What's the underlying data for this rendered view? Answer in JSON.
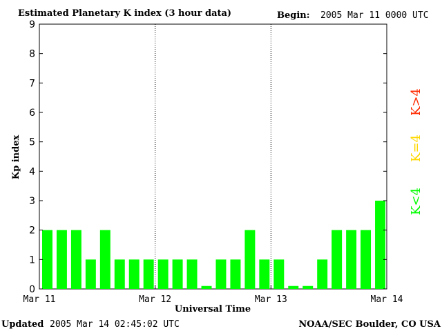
{
  "header": {
    "title": "Estimated Planetary K index (3 hour data)",
    "begin_label": "Begin:",
    "begin_value": "2005 Mar 11 0000 UTC"
  },
  "footer": {
    "updated_label": "Updated",
    "updated_value": "2005 Mar 14 02:45:02 UTC",
    "source": "NOAA/SEC Boulder, CO USA"
  },
  "legend": [
    {
      "label": "K>4",
      "color": "#ff2a00"
    },
    {
      "label": "K=4",
      "color": "#ffd800"
    },
    {
      "label": "K<4",
      "color": "#00ff00"
    }
  ],
  "chart_data": {
    "type": "bar",
    "title": "Estimated Planetary K index (3 hour data)",
    "xlabel": "Universal Time",
    "ylabel": "Kp index",
    "ylim": [
      0,
      9
    ],
    "yticks": [
      "0",
      "1",
      "2",
      "3",
      "4",
      "5",
      "6",
      "7",
      "8",
      "9"
    ],
    "xticks": [
      "Mar 11",
      "Mar 12",
      "Mar 13",
      "Mar 14"
    ],
    "day_separators": [
      "Mar 12",
      "Mar 13"
    ],
    "categories": [
      "Mar 11 00",
      "Mar 11 03",
      "Mar 11 06",
      "Mar 11 09",
      "Mar 11 12",
      "Mar 11 15",
      "Mar 11 18",
      "Mar 11 21",
      "Mar 12 00",
      "Mar 12 03",
      "Mar 12 06",
      "Mar 12 09",
      "Mar 12 12",
      "Mar 12 15",
      "Mar 12 18",
      "Mar 12 21",
      "Mar 13 00",
      "Mar 13 03",
      "Mar 13 06",
      "Mar 13 09",
      "Mar 13 12",
      "Mar 13 15",
      "Mar 13 18",
      "Mar 13 21"
    ],
    "values": [
      2,
      2,
      2,
      1,
      2,
      1,
      1,
      1,
      1,
      1,
      1,
      0.1,
      1,
      1,
      2,
      1,
      1,
      0.1,
      0.1,
      1,
      2,
      2,
      2,
      3
    ],
    "bar_color": "#00ff00"
  }
}
